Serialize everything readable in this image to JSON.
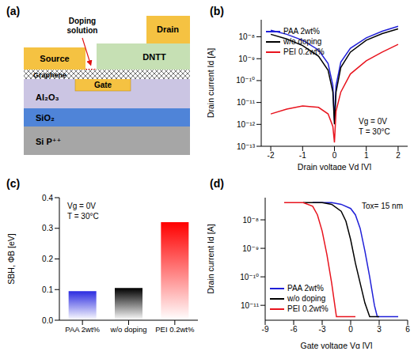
{
  "diagram": {
    "title": "(a)",
    "layers": {
      "substrate": "Si P⁺⁺",
      "dielectric": "SiO₂",
      "gate_dielectric": "Al₂O₃",
      "gate": "Gate",
      "channel": "Graphene",
      "source": "Source",
      "semiconductor": "DNTT",
      "drain": "Drain",
      "dopant": "Doping solution"
    }
  },
  "chart_data": [
    {
      "title": "(b)",
      "type": "line",
      "log": "y",
      "xlabel": "Drain voltage Vd [V]",
      "ylabel": "Drain current Id [A]",
      "xlim": [
        -2.3,
        2.3
      ],
      "xticks": [
        -2,
        -1,
        0,
        1,
        2
      ],
      "ylim": [
        1e-13,
        6e-08
      ],
      "yticks": [
        {
          "value": 1e-13,
          "label": "10⁻¹³"
        },
        {
          "value": 1e-12,
          "label": "10⁻¹²"
        },
        {
          "value": 1e-11,
          "label": "10⁻¹¹"
        },
        {
          "value": 1e-10,
          "label": "10⁻¹⁰"
        },
        {
          "value": 1e-09,
          "label": "10⁻⁹"
        },
        {
          "value": 1e-08,
          "label": "10⁻⁸"
        }
      ],
      "legend": "upper left",
      "annotations": [
        "Vg = 0V",
        "T = 30°C"
      ],
      "series": [
        {
          "name": "PAA 2wt%",
          "color": "#2020d8",
          "x": [
            -2,
            -1.5,
            -1,
            -0.5,
            -0.2,
            -0.05,
            0,
            0.05,
            0.2,
            0.5,
            1,
            1.5,
            2
          ],
          "values": [
            2e-08,
            1.3e-08,
            7e-09,
            2.5e-09,
            6e-10,
            6e-11,
            1.5e-12,
            6e-11,
            7e-10,
            3e-09,
            9e-09,
            1.8e-08,
            3e-08
          ]
        },
        {
          "name": "w/o doping",
          "color": "#000000",
          "x": [
            -2,
            -1.5,
            -1,
            -0.5,
            -0.2,
            -0.05,
            0,
            0.05,
            0.2,
            0.5,
            1,
            1.5,
            2
          ],
          "values": [
            1.3e-08,
            8e-09,
            4e-09,
            1.3e-09,
            3e-10,
            3e-11,
            1e-12,
            3e-11,
            4e-10,
            2e-09,
            7e-09,
            1.4e-08,
            2.3e-08
          ]
        },
        {
          "name": "PEI 0.2wt%",
          "color": "#e8141e",
          "x": [
            -2,
            -1.5,
            -1,
            -0.5,
            -0.2,
            -0.05,
            0,
            0.05,
            0.2,
            0.5,
            1,
            1.5,
            2
          ],
          "values": [
            3e-12,
            5e-12,
            7e-12,
            6e-12,
            3e-12,
            8e-13,
            1.5e-13,
            4e-12,
            3e-11,
            2e-10,
            8e-10,
            2e-09,
            4.5e-09
          ]
        }
      ]
    },
    {
      "title": "(c)",
      "type": "bar",
      "ylabel": "SBH, ΦB [eV]",
      "categories": [
        "PAA 2wt%",
        "w/o doping",
        "PEI 0.2wt%"
      ],
      "values": [
        0.095,
        0.105,
        0.32
      ],
      "colors": [
        "#2a2ae0",
        "#000000",
        "#ff0000"
      ],
      "ylim": [
        0,
        0.4
      ],
      "yticks": [
        {
          "value": 0,
          "label": "0.0"
        },
        0.1,
        0.2,
        0.3,
        0.4
      ],
      "annotations": [
        "Vg = 0V",
        "T = 30°C"
      ]
    },
    {
      "title": "(d)",
      "type": "line",
      "log": "y",
      "xlabel": "Gate voltage Vg [V]",
      "ylabel": "Drain current Id [A]",
      "xlim": [
        -9,
        6
      ],
      "xticks": [
        -9,
        -6,
        -3,
        0,
        3,
        6
      ],
      "ylim": [
        3e-12,
        6e-08
      ],
      "yticks": [
        {
          "value": 1e-11,
          "label": "10⁻¹¹"
        },
        {
          "value": 1e-10,
          "label": "10⁻¹⁰"
        },
        {
          "value": 1e-09,
          "label": "10⁻⁹"
        },
        {
          "value": 1e-08,
          "label": "10⁻⁸"
        }
      ],
      "legend": "lower left",
      "annotations": [
        "Tox= 15 nm"
      ],
      "series": [
        {
          "name": "PAA 2wt%",
          "color": "#2020d8",
          "x": [
            -4,
            -2,
            -1,
            0,
            0.5,
            1,
            1.5,
            2,
            2.5,
            2.8,
            3.5,
            5
          ],
          "values": [
            4e-08,
            4e-08,
            3.5e-08,
            2.5e-08,
            1.5e-08,
            5e-09,
            8e-10,
            1e-10,
            1e-11,
            4e-12,
            4e-12,
            4e-12
          ]
        },
        {
          "name": "w/o doping",
          "color": "#000000",
          "x": [
            -5,
            -3,
            -2,
            -1,
            -0.5,
            0,
            0.5,
            1,
            1.5,
            2,
            3
          ],
          "values": [
            4e-08,
            4e-08,
            3.5e-08,
            2e-08,
            9e-09,
            2e-09,
            3e-10,
            6e-11,
            1.2e-11,
            4e-12,
            4e-12
          ]
        },
        {
          "name": "PEI 0.2wt%",
          "color": "#e8141e",
          "x": [
            -7,
            -5,
            -4,
            -3.5,
            -3,
            -2.5,
            -2,
            -1.5,
            0.5
          ],
          "values": [
            4e-08,
            4e-08,
            3e-08,
            1.5e-08,
            4e-09,
            6e-10,
            6e-11,
            4e-12,
            4e-12
          ]
        }
      ]
    }
  ]
}
